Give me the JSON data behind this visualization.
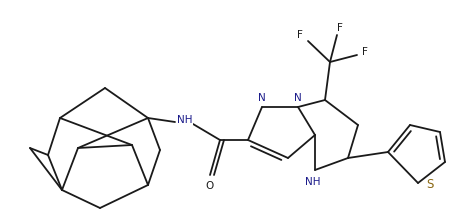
{
  "background_color": "#ffffff",
  "line_color": "#1a1a1a",
  "nitrogen_color": "#1a1a8a",
  "sulfur_color": "#8B6914",
  "figsize": [
    4.55,
    2.21
  ],
  "dpi": 100,
  "bond_lw": 1.3,
  "font_size": 7.5,
  "xlim": [
    0,
    455
  ],
  "ylim": [
    0,
    221
  ]
}
